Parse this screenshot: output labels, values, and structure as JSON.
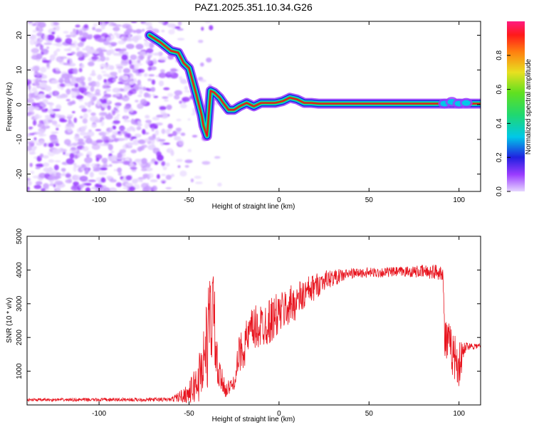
{
  "title": "PAZ1.2025.351.10.34.G26",
  "colors": {
    "background": "#ffffff",
    "axis": "#000000",
    "snr_line": "#e8141e",
    "ridge_core": "#e8141e",
    "ridge_mid": "#2ad84a",
    "ridge_outer": "#1e28d8",
    "scatter_a": "#9a3cff",
    "scatter_b": "#c89cff",
    "scatter_c": "#e6d4ff"
  },
  "chart_data": [
    {
      "id": "spectrogram",
      "type": "heatmap",
      "xlabel": "Height of straight line (km)",
      "ylabel": "Frequency (Hz)",
      "xlim": [
        -140,
        112
      ],
      "ylim": [
        -25,
        24
      ],
      "x_ticks": [
        -100,
        -50,
        0,
        50,
        100
      ],
      "x_tick_labels": [
        "-100",
        "-50",
        "0",
        "50",
        "100"
      ],
      "y_ticks": [
        -20,
        -10,
        0,
        10,
        20
      ],
      "y_tick_labels": [
        "-20",
        "-10",
        "0",
        "10",
        "20"
      ],
      "ridge": {
        "description": "dominant frequency track",
        "points": [
          [
            -72,
            20
          ],
          [
            -66,
            18
          ],
          [
            -60,
            15.5
          ],
          [
            -56,
            15
          ],
          [
            -53,
            12
          ],
          [
            -50,
            10.5
          ],
          [
            -46,
            3
          ],
          [
            -43,
            -3
          ],
          [
            -42,
            -6
          ],
          [
            -40,
            -9
          ],
          [
            -38,
            4
          ],
          [
            -36,
            3.5
          ],
          [
            -33,
            2
          ],
          [
            -31,
            0.5
          ],
          [
            -28,
            -1.5
          ],
          [
            -25,
            -1.5
          ],
          [
            -22,
            -0.5
          ],
          [
            -18,
            0.5
          ],
          [
            -14,
            -0.5
          ],
          [
            -10,
            0.5
          ],
          [
            -6,
            0.5
          ],
          [
            -2,
            0.5
          ],
          [
            2,
            1
          ],
          [
            6,
            2
          ],
          [
            10,
            1.5
          ],
          [
            14,
            0.5
          ],
          [
            18,
            0.5
          ],
          [
            22,
            0.3
          ],
          [
            112,
            0.3
          ]
        ],
        "late_blobs": [
          [
            92,
            0.3
          ],
          [
            96,
            0.8
          ],
          [
            100,
            0.3
          ],
          [
            104,
            0.5
          ]
        ]
      },
      "scatter_extent_x": [
        -140,
        -30
      ],
      "colorbar": {
        "label": "Normalized spectral amplitude",
        "range": [
          0,
          1
        ],
        "ticks": [
          0.0,
          0.2,
          0.4,
          0.6,
          0.8
        ],
        "tick_labels": [
          "0.0",
          "0.2",
          "0.4",
          "0.6",
          "0.8"
        ]
      }
    },
    {
      "id": "snr",
      "type": "line",
      "xlabel": "Height of straight line (km)",
      "ylabel": "SNR (10 * v/v)",
      "xlim": [
        -140,
        112
      ],
      "ylim": [
        0,
        5000
      ],
      "x_ticks": [
        -100,
        -50,
        0,
        50,
        100
      ],
      "x_tick_labels": [
        "-100",
        "-50",
        "0",
        "50",
        "100"
      ],
      "y_ticks": [
        1000,
        2000,
        3000,
        4000,
        5000
      ],
      "y_tick_labels": [
        "1000",
        "2000",
        "3000",
        "4000",
        "5000"
      ],
      "series": [
        {
          "name": "SNR",
          "envelope": [
            {
              "x": -140,
              "base": 150,
              "noise": 40
            },
            {
              "x": -60,
              "base": 160,
              "noise": 60
            },
            {
              "x": -50,
              "base": 350,
              "noise": 300
            },
            {
              "x": -45,
              "base": 700,
              "noise": 700
            },
            {
              "x": -40,
              "base": 1800,
              "noise": 1400
            },
            {
              "x": -37,
              "base": 3000,
              "noise": 1800
            },
            {
              "x": -34,
              "base": 900,
              "noise": 500
            },
            {
              "x": -29,
              "base": 450,
              "noise": 250
            },
            {
              "x": -25,
              "base": 650,
              "noise": 200
            },
            {
              "x": -22,
              "base": 1500,
              "noise": 600
            },
            {
              "x": -15,
              "base": 2200,
              "noise": 700
            },
            {
              "x": -5,
              "base": 2500,
              "noise": 700
            },
            {
              "x": 5,
              "base": 2900,
              "noise": 600
            },
            {
              "x": 15,
              "base": 3300,
              "noise": 500
            },
            {
              "x": 25,
              "base": 3700,
              "noise": 300
            },
            {
              "x": 40,
              "base": 3900,
              "noise": 150
            },
            {
              "x": 70,
              "base": 3950,
              "noise": 150
            },
            {
              "x": 91,
              "base": 3950,
              "noise": 250
            },
            {
              "x": 92,
              "base": 2000,
              "noise": 700
            },
            {
              "x": 97,
              "base": 1500,
              "noise": 700
            },
            {
              "x": 100,
              "base": 1200,
              "noise": 700
            },
            {
              "x": 104,
              "base": 1750,
              "noise": 120
            },
            {
              "x": 112,
              "base": 1750,
              "noise": 80
            }
          ]
        }
      ]
    }
  ]
}
